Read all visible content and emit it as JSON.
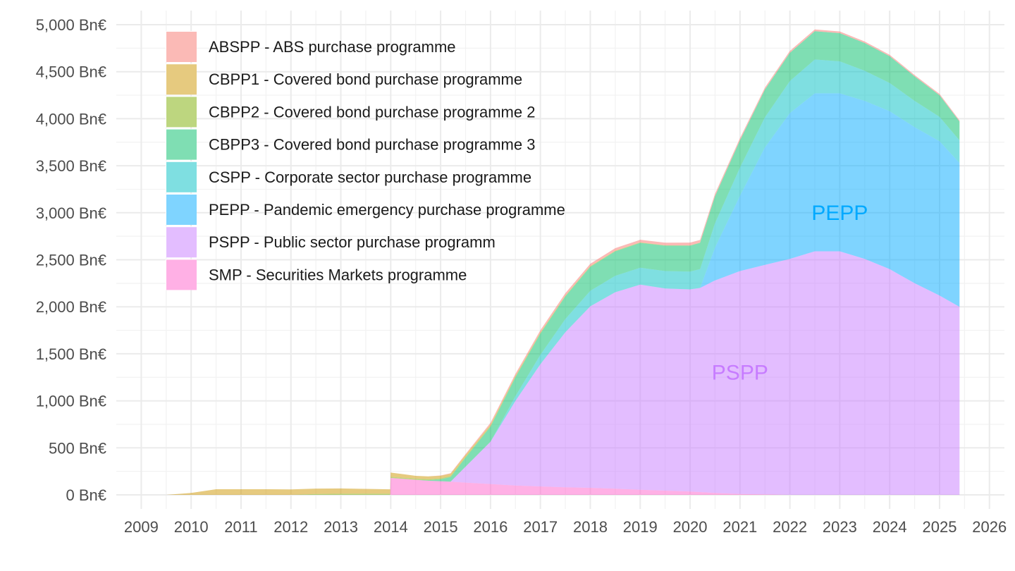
{
  "chart_data": {
    "type": "area",
    "stacked": true,
    "x_unit": "year",
    "y_unit": "Bn€",
    "xlim": [
      2008.5,
      2026.3
    ],
    "ylim": [
      -150,
      5150
    ],
    "x_ticks": [
      2009,
      2010,
      2011,
      2012,
      2013,
      2014,
      2015,
      2016,
      2017,
      2018,
      2019,
      2020,
      2021,
      2022,
      2023,
      2024,
      2025,
      2026
    ],
    "y_ticks": [
      0,
      500,
      1000,
      1500,
      2000,
      2500,
      3000,
      3500,
      4000,
      4500,
      5000
    ],
    "y_tick_labels": [
      "0 Bn€",
      "500 Bn€",
      "1,000 Bn€",
      "1,500 Bn€",
      "2,000 Bn€",
      "2,500 Bn€",
      "3,000 Bn€",
      "3,500 Bn€",
      "4,000 Bn€",
      "4,500 Bn€",
      "5,000 Bn€"
    ],
    "x_tick_labels": [
      "2009",
      "2010",
      "2011",
      "2012",
      "2013",
      "2014",
      "2015",
      "2016",
      "2017",
      "2018",
      "2019",
      "2020",
      "2021",
      "2022",
      "2023",
      "2024",
      "2025",
      "2026"
    ],
    "grid": true,
    "legend_position": "top-left",
    "fill_opacity": 0.5,
    "x": [
      2009.5,
      2010.0,
      2010.5,
      2011.0,
      2011.5,
      2012.0,
      2012.5,
      2013.0,
      2013.5,
      2013.99,
      2014.0,
      2014.25,
      2014.5,
      2014.75,
      2015.0,
      2015.2,
      2015.5,
      2016.0,
      2016.5,
      2017.0,
      2017.5,
      2018.0,
      2018.5,
      2019.0,
      2019.5,
      2020.0,
      2020.2,
      2020.5,
      2021.0,
      2021.5,
      2022.0,
      2022.5,
      2023.0,
      2023.5,
      2024.0,
      2024.5,
      2025.0,
      2025.4
    ],
    "series": [
      {
        "name": "SMP - Securities Markets programme",
        "short": "SMP",
        "color": "#FF61CC",
        "values": [
          0,
          0,
          0,
          0,
          0,
          0,
          0,
          0,
          0,
          0,
          180,
          170,
          160,
          150,
          145,
          140,
          130,
          115,
          100,
          90,
          80,
          75,
          65,
          55,
          45,
          35,
          30,
          20,
          10,
          5,
          0,
          0,
          0,
          0,
          0,
          0,
          0,
          0
        ]
      },
      {
        "name": "PSPP - Public sector purchase programm",
        "short": "PSPP",
        "color": "#C77CFF",
        "values": [
          0,
          0,
          0,
          0,
          0,
          0,
          0,
          0,
          0,
          0,
          0,
          0,
          0,
          0,
          0,
          0,
          170,
          450,
          900,
          1300,
          1650,
          1930,
          2090,
          2180,
          2150,
          2150,
          2170,
          2260,
          2370,
          2440,
          2510,
          2590,
          2590,
          2510,
          2400,
          2250,
          2120,
          2000
        ]
      },
      {
        "name": "PEPP - Pandemic emergency purchase programme",
        "short": "PEPP",
        "color": "#00A9FF",
        "values": [
          0,
          0,
          0,
          0,
          0,
          0,
          0,
          0,
          0,
          0,
          0,
          0,
          0,
          0,
          0,
          0,
          0,
          0,
          0,
          0,
          0,
          0,
          0,
          0,
          0,
          0,
          0,
          350,
          800,
          1250,
          1550,
          1680,
          1680,
          1680,
          1680,
          1660,
          1640,
          1530
        ]
      },
      {
        "name": "CSPP - Corporate sector purchase programme",
        "short": "CSPP",
        "color": "#00BFC4",
        "values": [
          0,
          0,
          0,
          0,
          0,
          0,
          0,
          0,
          0,
          0,
          0,
          0,
          0,
          0,
          0,
          0,
          0,
          0,
          50,
          100,
          140,
          165,
          175,
          180,
          185,
          190,
          200,
          260,
          300,
          320,
          340,
          360,
          340,
          320,
          300,
          280,
          260,
          240
        ]
      },
      {
        "name": "CBPP3 - Covered bond purchase programme 3",
        "short": "CBPP3",
        "color": "#00BE67",
        "values": [
          0,
          0,
          0,
          0,
          0,
          0,
          0,
          0,
          0,
          0,
          0,
          0,
          0,
          5,
          20,
          50,
          95,
          160,
          200,
          225,
          240,
          255,
          260,
          265,
          270,
          275,
          280,
          285,
          290,
          295,
          300,
          300,
          300,
          295,
          285,
          260,
          230,
          200
        ]
      },
      {
        "name": "CBPP2 - Covered bond purchase programme 2",
        "short": "CBPP2",
        "color": "#7CAE00",
        "values": [
          0,
          0,
          0,
          0,
          0,
          0,
          10,
          12,
          12,
          12,
          12,
          12,
          12,
          12,
          11,
          10,
          9,
          8,
          7,
          6,
          5,
          4,
          4,
          3,
          3,
          2,
          2,
          2,
          1,
          1,
          1,
          0,
          0,
          0,
          0,
          0,
          0,
          0
        ]
      },
      {
        "name": "CBPP1 - Covered bond purchase programme",
        "short": "CBPP1",
        "color": "#CD9600",
        "values": [
          0,
          20,
          60,
          60,
          60,
          58,
          57,
          56,
          52,
          47,
          45,
          38,
          30,
          29,
          27,
          25,
          20,
          15,
          10,
          7,
          5,
          4,
          3,
          2,
          1,
          1,
          1,
          0,
          0,
          0,
          0,
          0,
          0,
          0,
          0,
          0,
          0,
          0
        ]
      },
      {
        "name": "ABSPP - ABS purchase programme",
        "short": "ABSPP",
        "color": "#F8766D",
        "values": [
          0,
          0,
          0,
          0,
          0,
          0,
          0,
          0,
          0,
          0,
          0,
          0,
          0,
          0,
          3,
          6,
          10,
          18,
          20,
          23,
          25,
          25,
          27,
          28,
          28,
          30,
          28,
          25,
          22,
          20,
          20,
          20,
          18,
          16,
          15,
          14,
          13,
          13
        ]
      }
    ],
    "legend_order": [
      "ABSPP - ABS purchase programme",
      "CBPP1 - Covered bond purchase programme",
      "CBPP2 - Covered bond purchase programme 2",
      "CBPP3 - Covered bond purchase programme 3",
      "CSPP - Corporate sector purchase programme",
      "PEPP - Pandemic emergency purchase programme",
      "PSPP - Public sector purchase programm",
      "SMP - Securities Markets programme"
    ],
    "annotations": [
      {
        "text": "PEPP",
        "x": 2023.0,
        "y": 3000,
        "color": "#00A9FF"
      },
      {
        "text": "PSPP",
        "x": 2021.0,
        "y": 1300,
        "color": "#C77CFF"
      }
    ]
  }
}
